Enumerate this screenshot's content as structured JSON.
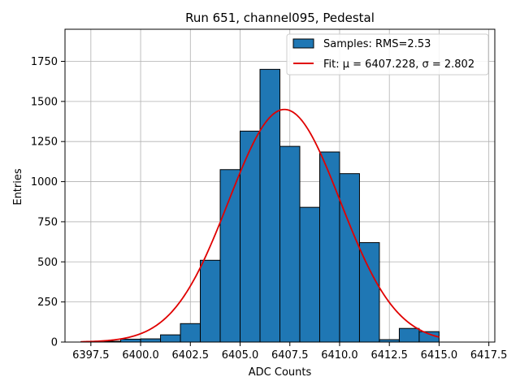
{
  "chart_data": {
    "type": "bar",
    "title": "Run 651, channel095, Pedestal",
    "xlabel": "ADC Counts",
    "ylabel": "Entries",
    "xlim": [
      6396.2,
      6417.8
    ],
    "ylim": [
      0,
      1950
    ],
    "xticks": [
      6397.5,
      6400.0,
      6402.5,
      6405.0,
      6407.5,
      6410.0,
      6412.5,
      6415.0,
      6417.5
    ],
    "xtick_labels": [
      "6397.5",
      "6400.0",
      "6402.5",
      "6405.0",
      "6407.5",
      "6410.0",
      "6412.5",
      "6415.0",
      "6417.5"
    ],
    "yticks": [
      0,
      250,
      500,
      750,
      1000,
      1250,
      1500,
      1750
    ],
    "ytick_labels": [
      "0",
      "250",
      "500",
      "750",
      "1000",
      "1250",
      "1500",
      "1750"
    ],
    "grid": true,
    "legend_position": "top-right",
    "bar_color": "#1f77b4",
    "fit_color": "#e00000",
    "histogram": {
      "name": "Samples: RMS=2.53",
      "bin_edges": [
        6397.0,
        6398.0,
        6399.0,
        6400.0,
        6401.0,
        6402.0,
        6403.0,
        6404.0,
        6405.0,
        6406.0,
        6407.0,
        6408.0,
        6409.0,
        6410.0,
        6411.0,
        6412.0,
        6413.0,
        6414.0,
        6415.0
      ],
      "counts": [
        2,
        5,
        18,
        20,
        45,
        115,
        510,
        1075,
        1315,
        1700,
        1220,
        840,
        1185,
        1050,
        620,
        15,
        85,
        65
      ]
    },
    "fit": {
      "name": "Fit: μ = 6407.228, σ = 2.802",
      "mu": 6407.228,
      "sigma": 2.802,
      "amplitude": 1450,
      "x_range": [
        6397.0,
        6415.0
      ]
    }
  }
}
